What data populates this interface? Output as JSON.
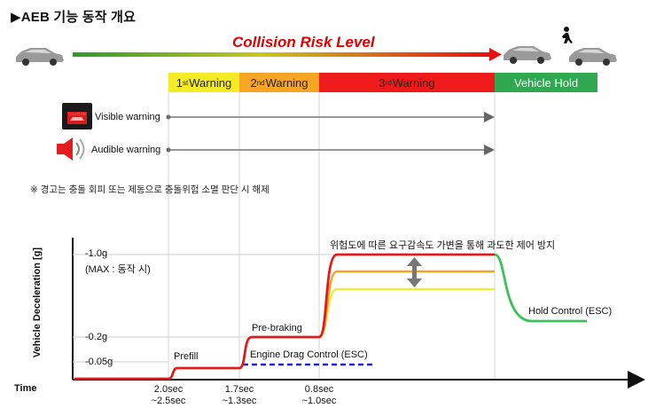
{
  "header": {
    "title": "▶AEB 기능 동작  개요"
  },
  "risk_bar": {
    "label": "Collision Risk Level"
  },
  "stages": [
    {
      "sup": "st",
      "num": "1",
      "text": " Warning",
      "color": "#f4ea25"
    },
    {
      "sup": "nd",
      "num": "2",
      "text": " Warning",
      "color": "#f6a623"
    },
    {
      "sup": "rd",
      "num": "3",
      "text": " Warning",
      "color": "#ef1b1b"
    },
    {
      "sup": "",
      "num": "",
      "text": "Vehicle Hold",
      "color": "#2fa84f"
    }
  ],
  "warnings": [
    {
      "label": "Visible warning",
      "icon": "caution-display-icon",
      "badge": "CAUTION"
    },
    {
      "label": "Audible warning",
      "icon": "speaker-icon"
    }
  ],
  "note": "※ 경고는 충돌 회피 또는 제동으로 충돌위험 소멸 판단 시 해제",
  "chart": {
    "ylabel": "Vehicle Deceleration [g]",
    "xlabel": "Time",
    "y_ticks": [
      "-1.0g",
      "-0.2g",
      "-0.05g"
    ],
    "max_note": "(MAX : 동작 시)",
    "phase_labels": {
      "prefill": "Prefill",
      "pre_braking": "Pre-braking",
      "engine_drag": "Engine Drag Control (ESC)",
      "hold_control": "Hold Control (ESC)",
      "variable_decel": "위험도에 따른 요구감속도 가변을 통해 과도한 제어 방지"
    },
    "time_marks": [
      {
        "line1": "2.0sec",
        "line2": "~2.5sec"
      },
      {
        "line1": "1.7sec",
        "line2": "~1.3sec"
      },
      {
        "line1": "0.8sec",
        "line2": "~1.0sec"
      }
    ]
  }
}
